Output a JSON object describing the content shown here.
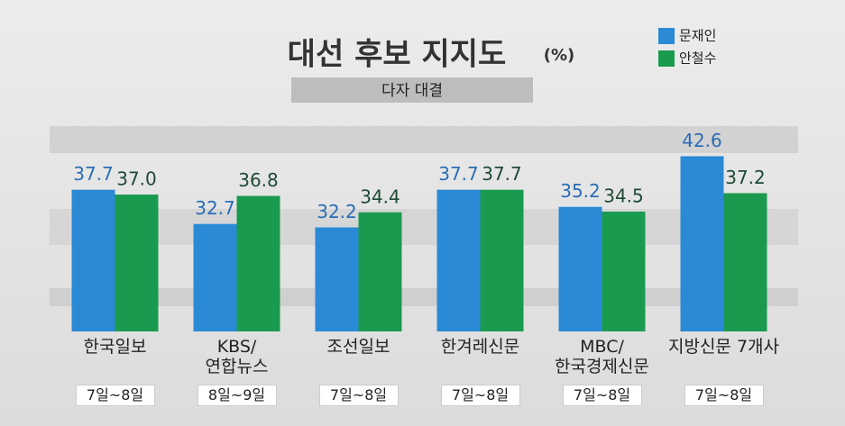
{
  "chart_data": {
    "type": "bar",
    "title": "대선 후보 지지도",
    "unit": "(%)",
    "subtitle": "다자 대결",
    "categories": [
      "한국일보",
      "KBS/\n연합뉴스",
      "조선일보",
      "한겨레신문",
      "MBC/\n한국경제신문",
      "지방신문 7개사"
    ],
    "periods": [
      "7일~8일",
      "8일~9일",
      "7일~8일",
      "7일~8일",
      "7일~8일",
      "7일~8일"
    ],
    "series": [
      {
        "name": "문재인",
        "color": "#2a8ad6",
        "label_color": "#2a6db5",
        "values": [
          37.7,
          32.7,
          32.2,
          37.7,
          35.2,
          42.6
        ]
      },
      {
        "name": "안철수",
        "color": "#1a9a4e",
        "label_color": "#1f4a35",
        "values": [
          37.0,
          36.8,
          34.4,
          37.7,
          34.5,
          37.2
        ],
        "value_labels": [
          "37.0",
          "36.8",
          "34.4",
          "37.7",
          "34.5",
          "37.2"
        ]
      }
    ],
    "ylim": [
      17,
      47
    ]
  }
}
